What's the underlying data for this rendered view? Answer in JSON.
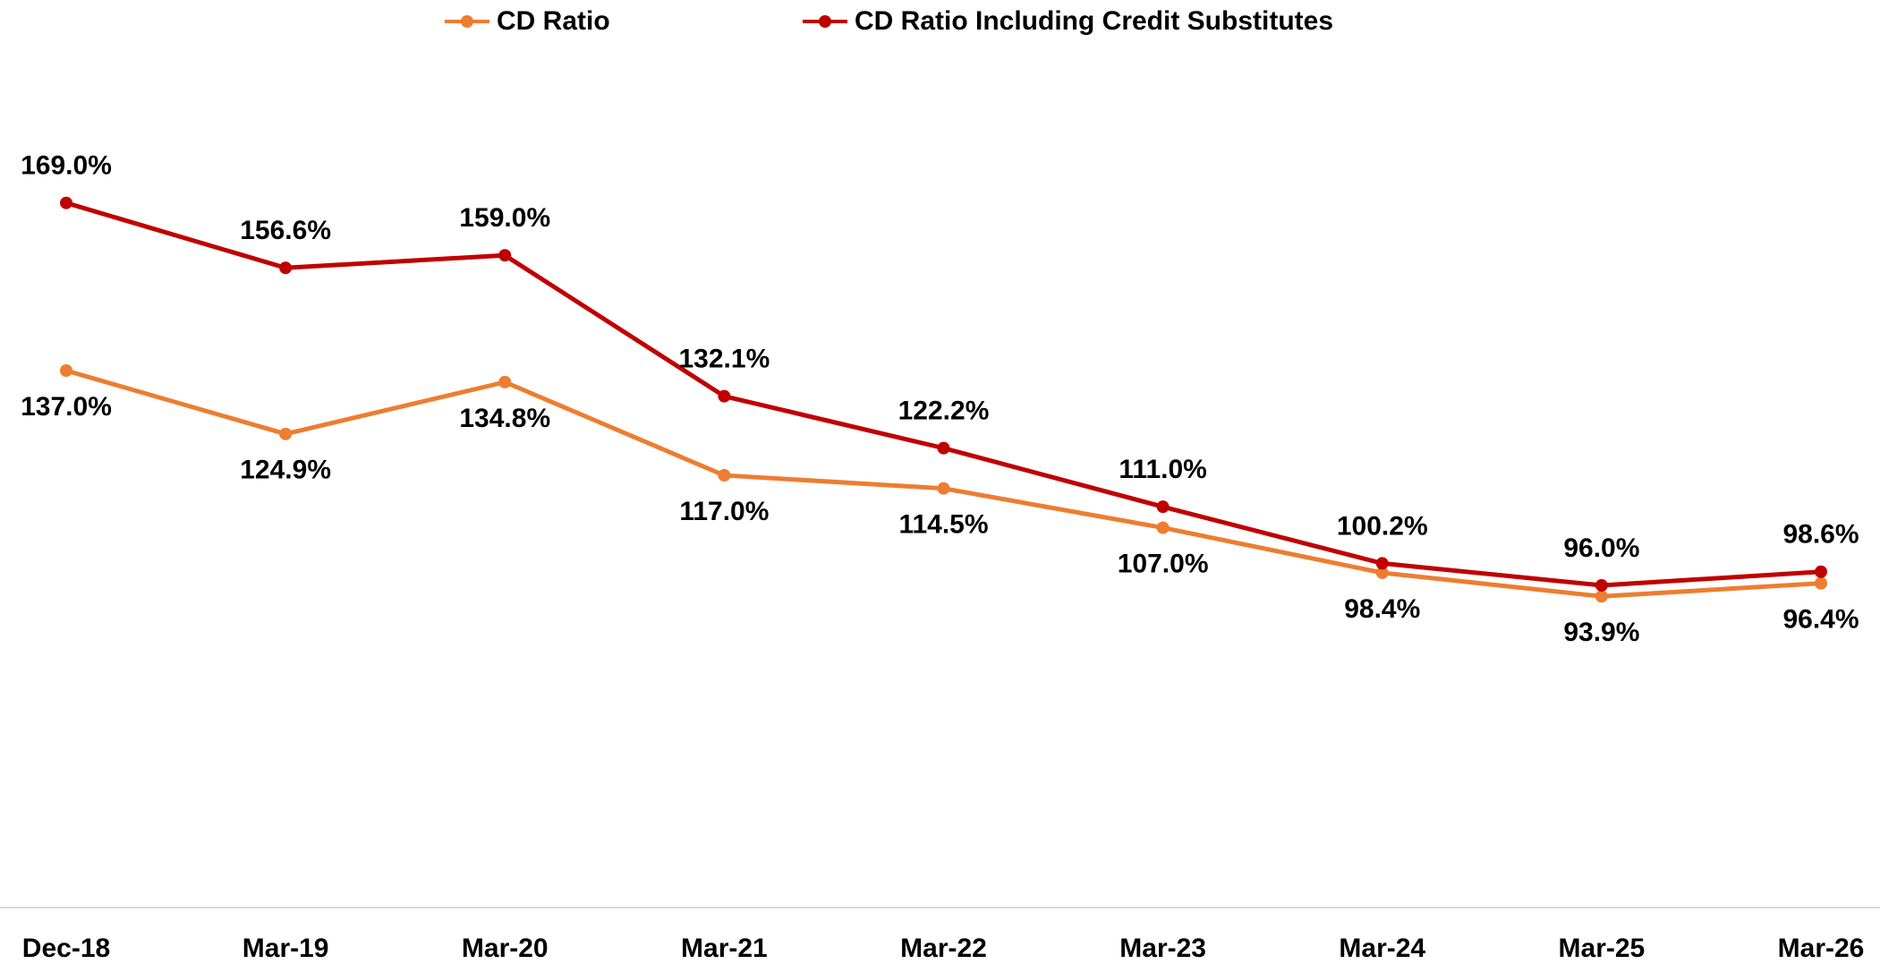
{
  "chart_data": {
    "type": "line",
    "categories": [
      "Dec-18",
      "Mar-19",
      "Mar-20",
      "Mar-21",
      "Mar-22",
      "Mar-23",
      "Mar-24",
      "Mar-25",
      "Mar-26"
    ],
    "series": [
      {
        "name": "CD Ratio",
        "color": "#ED7D31",
        "label_position": "below",
        "values": [
          137.0,
          124.9,
          134.8,
          117.0,
          114.5,
          107.0,
          98.4,
          93.9,
          96.4
        ],
        "value_labels": [
          "137.0%",
          "124.9%",
          "134.8%",
          "117.0%",
          "114.5%",
          "107.0%",
          "98.4%",
          "93.9%",
          "96.4%"
        ]
      },
      {
        "name": "CD Ratio Including Credit Substitutes",
        "color": "#C00000",
        "label_position": "above",
        "values": [
          169.0,
          156.6,
          159.0,
          132.1,
          122.2,
          111.0,
          100.2,
          96.0,
          98.6
        ],
        "value_labels": [
          "169.0%",
          "156.6%",
          "159.0%",
          "132.1%",
          "122.2%",
          "111.0%",
          "100.2%",
          "96.0%",
          "98.6%"
        ]
      }
    ],
    "ylim": [
      35,
      205
    ],
    "legend": "top"
  }
}
